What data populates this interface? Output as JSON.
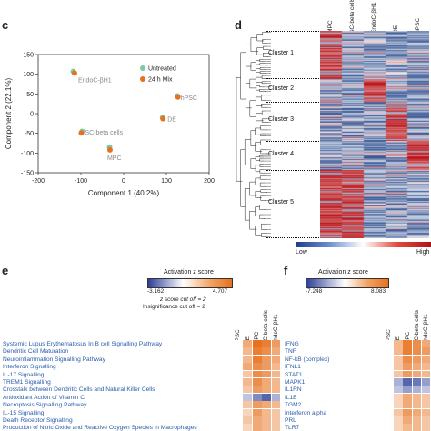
{
  "panels": {
    "c": "c",
    "d": "d",
    "e": "e",
    "f": "f"
  },
  "chart_data": [
    {
      "type": "scatter",
      "xlabel": "Component 1 (40.2%)",
      "ylabel": "Component 2 (22.1%)",
      "xlim": [
        -200,
        200
      ],
      "ylim": [
        -150,
        150
      ],
      "xticks": [
        -200,
        -100,
        0,
        100,
        200
      ],
      "yticks": [
        -150,
        -100,
        -50,
        0,
        50,
        100,
        150
      ],
      "legend": {
        "position": "top-right",
        "entries": [
          "Untreated",
          "24 h Mix"
        ]
      },
      "colors": {
        "Untreated": "#7cc9a6",
        "24 h Mix": "#e8711e",
        "label": "#8a8a8a"
      },
      "groups": [
        {
          "label": "EndoC-βH1",
          "untreated": [
            -118,
            107
          ],
          "mix": [
            -115,
            103
          ]
        },
        {
          "label": "hPSC",
          "untreated": [
            126,
            45
          ],
          "mix": [
            127,
            42
          ]
        },
        {
          "label": "DE",
          "untreated": [
            91,
            -10
          ],
          "mix": [
            92,
            -13
          ]
        },
        {
          "label": "SC-beta cells",
          "untreated": [
            -97,
            -45
          ],
          "mix": [
            -99,
            -49
          ]
        },
        {
          "label": "MPC",
          "untreated": [
            -33,
            -85
          ],
          "mix": [
            -32,
            -92
          ]
        }
      ]
    },
    {
      "type": "heatmap",
      "columns": [
        "MPC",
        "SC-beta cells",
        "EndoC-βH1",
        "DE",
        "hPSC"
      ],
      "clusters": [
        "Cluster 1",
        "Cluster 2",
        "Cluster 3",
        "Cluster 4",
        "Cluster 5"
      ],
      "colorbar": {
        "low": "Low",
        "high": "High"
      }
    },
    {
      "type": "heatmap",
      "title": "Activation z score",
      "scale": {
        "min": "-3.162",
        "max": "4.707"
      },
      "notes": [
        "z score cut off = 2",
        "Insignificance cut off = 2"
      ],
      "columns": [
        "hPSC",
        "DE",
        "MPC",
        "SC-beta cells",
        "EndoC-βH1"
      ],
      "rows": [
        {
          "name": "Systemic Lupus Erythematosus In B cell Signalling Pathway",
          "values": [
            0,
            0.6,
            1.0,
            0.9,
            0.7
          ]
        },
        {
          "name": "Dendritic Cell Maturation",
          "values": [
            0,
            0.5,
            0.9,
            0.8,
            0.6
          ]
        },
        {
          "name": "Neuroinflammation Signalling Pathway",
          "values": [
            0,
            0.5,
            0.9,
            0.7,
            0.6
          ]
        },
        {
          "name": "Interferon Signalling",
          "values": [
            0,
            0.6,
            0.8,
            0.7,
            0.5
          ]
        },
        {
          "name": "IL-17 Signalling",
          "values": [
            0,
            0.4,
            0.8,
            0.7,
            0.5
          ]
        },
        {
          "name": "TREM1 Signalling",
          "values": [
            0,
            0.5,
            0.8,
            0.6,
            0.5
          ]
        },
        {
          "name": "Crosstalk between Dendritic Cells and Natural Killer Cells",
          "values": [
            0,
            0.4,
            0.7,
            0.6,
            0.5
          ]
        },
        {
          "name": "Antioxidant Action of Vitamin C",
          "values": [
            0,
            -0.3,
            -0.6,
            -0.8,
            -0.4
          ]
        },
        {
          "name": "Necroptosis Signalling Pathway",
          "values": [
            0,
            0.4,
            0.7,
            0.6,
            0.5
          ]
        },
        {
          "name": "IL-15 Signalling",
          "values": [
            0,
            0.3,
            0.7,
            0.5,
            0.4
          ]
        },
        {
          "name": "Death Receptor Signalling",
          "values": [
            0,
            0.4,
            0.6,
            0.5,
            0.4
          ]
        },
        {
          "name": "Production of Nitric Oxide and Reactive Oxygen Species in Macrophages",
          "values": [
            0,
            0.3,
            0.6,
            0.5,
            0.4
          ]
        }
      ]
    },
    {
      "type": "heatmap",
      "title": "Activation z score",
      "scale": {
        "min": "-7.248",
        "max": "8.083"
      },
      "columns": [
        "hPSC",
        "DE",
        "MPC",
        "SC-beta cells",
        "EndoC-βH1"
      ],
      "rows": [
        {
          "name": "IFNG",
          "values": [
            0,
            0.5,
            0.9,
            0.8,
            0.6
          ]
        },
        {
          "name": "TNF",
          "values": [
            0,
            0.5,
            0.9,
            0.8,
            0.7
          ]
        },
        {
          "name": "NF-kB (complex)",
          "values": [
            0,
            0.4,
            0.8,
            0.7,
            0.6
          ]
        },
        {
          "name": "IFNL1",
          "values": [
            0,
            0.4,
            0.7,
            0.6,
            0.5
          ]
        },
        {
          "name": "STAT1",
          "values": [
            0,
            0.4,
            0.7,
            0.6,
            0.5
          ]
        },
        {
          "name": "MAPK1",
          "values": [
            0,
            -0.4,
            -0.8,
            -0.7,
            -0.5
          ]
        },
        {
          "name": "IL1RN",
          "values": [
            0,
            -0.3,
            -0.5,
            -0.4,
            -0.3
          ]
        },
        {
          "name": "IL1B",
          "values": [
            0,
            0.3,
            0.6,
            0.5,
            0.4
          ]
        },
        {
          "name": "TGM2",
          "values": [
            0,
            0.3,
            0.6,
            0.5,
            0.4
          ]
        },
        {
          "name": "Interferon alpha",
          "values": [
            0,
            0.4,
            0.7,
            0.6,
            0.5
          ]
        },
        {
          "name": "PRL",
          "values": [
            0,
            0.3,
            0.6,
            0.5,
            0.4
          ]
        },
        {
          "name": "TLR7",
          "values": [
            0,
            0.3,
            0.5,
            0.5,
            0.4
          ]
        }
      ]
    }
  ]
}
